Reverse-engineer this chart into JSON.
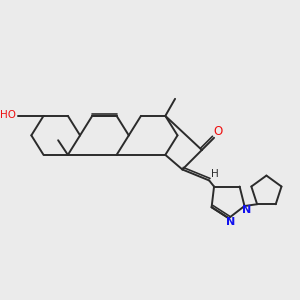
{
  "bg_color": "#ebebeb",
  "bond_color": "#2b2b2b",
  "o_color": "#ee1111",
  "n_color": "#1111ee",
  "line_width": 1.4,
  "figsize": [
    3.0,
    3.0
  ],
  "dpi": 100,
  "xlim": [
    0,
    12
  ],
  "ylim": [
    0,
    12
  ]
}
